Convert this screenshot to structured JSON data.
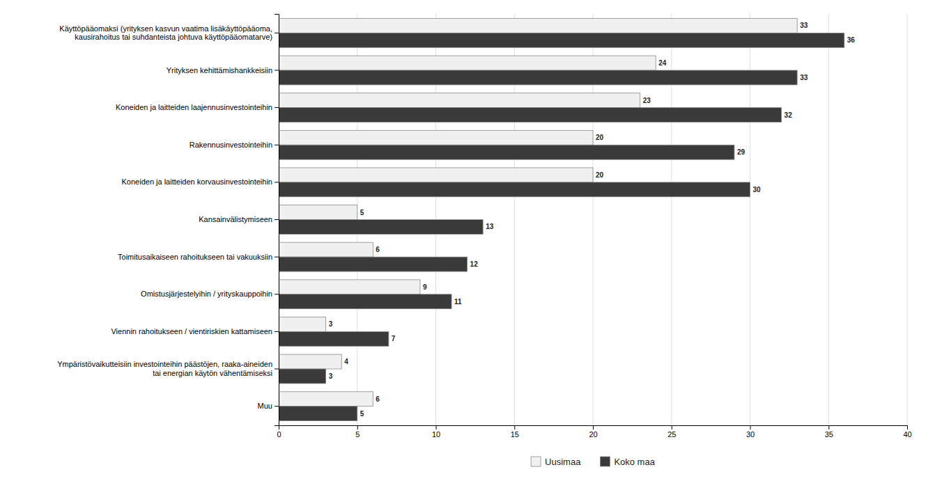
{
  "chart_data": {
    "type": "bar",
    "orientation": "horizontal",
    "categories": [
      "Käyttöpääomaksi (yrityksen kasvun vaatima lisäkäyttöpääoma,\nkausirahoitus tai suhdanteista johtuva käyttöpääomatarve)",
      "Yrityksen kehittämishankkeisiin",
      "Koneiden ja laitteiden laajennusinvestointeihin",
      "Rakennusinvestointeihin",
      "Koneiden ja laitteiden korvausinvestointeihin",
      "Kansainvälistymiseen",
      "Toimitusaikaiseen rahoitukseen tai vakuuksiin",
      "Omistusjärjestelyihin / yrityskauppoihin",
      "Viennin rahoitukseen / vientiriskien kattamiseen",
      "Ympäristövaikutteisiin investointeihin päästöjen, raaka-aineiden\ntai energian käytön vähentämiseksi",
      "Muu"
    ],
    "series": [
      {
        "name": "Uusimaa",
        "color": "#f0f0f0",
        "values": [
          33,
          24,
          23,
          20,
          20,
          5,
          6,
          9,
          3,
          4,
          6
        ]
      },
      {
        "name": "Koko maa",
        "color": "#3a3a3a",
        "values": [
          36,
          33,
          32,
          29,
          30,
          13,
          12,
          11,
          7,
          3,
          5
        ]
      }
    ],
    "xlim": [
      0,
      40
    ],
    "xticks": [
      0,
      5,
      10,
      15,
      20,
      25,
      30,
      35,
      40
    ],
    "grid": true,
    "data_labels": true,
    "legend": "bottom"
  }
}
